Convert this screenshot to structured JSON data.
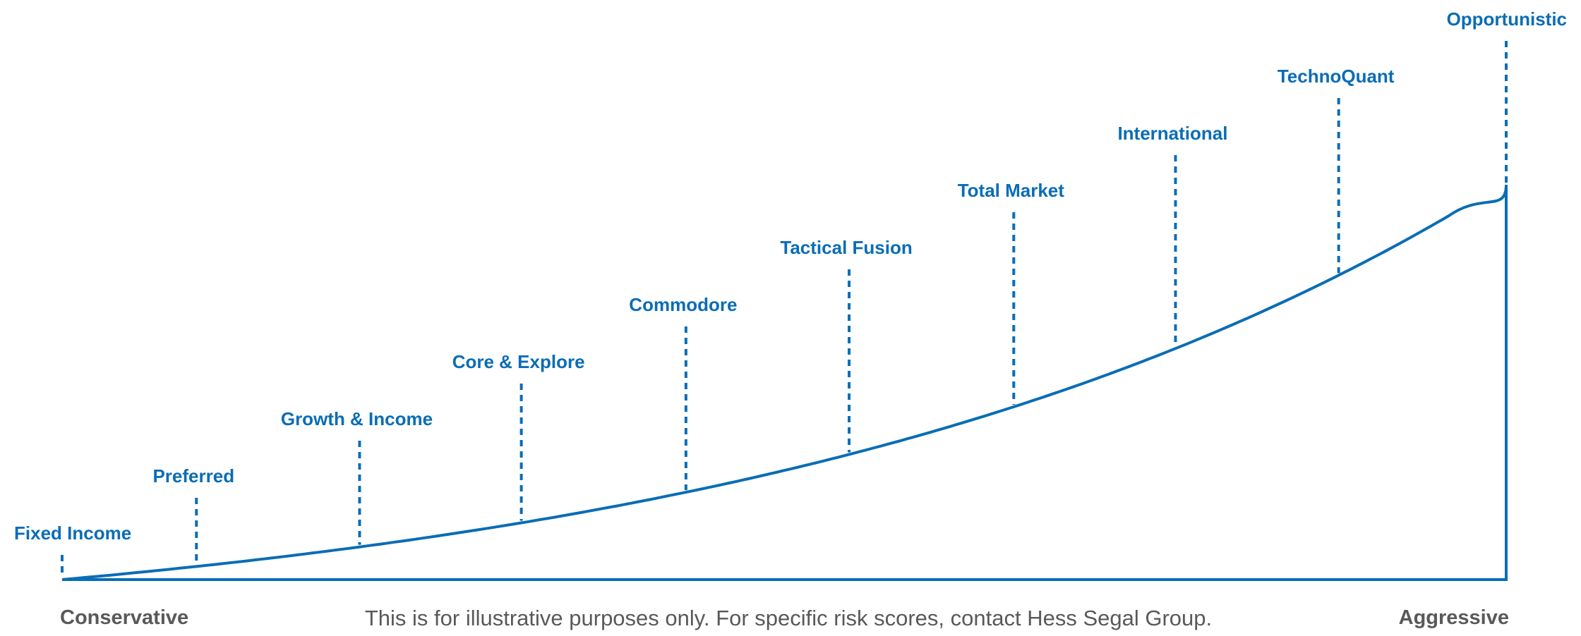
{
  "colors": {
    "accent": "#0a6db5",
    "end_label": "#595959",
    "footnote": "#595959",
    "background": "#ffffff"
  },
  "strategies": [
    {
      "label": "Fixed Income",
      "risk": 0.0
    },
    {
      "label": "Preferred",
      "risk": 0.093
    },
    {
      "label": "Growth & Income",
      "risk": 0.206
    },
    {
      "label": "Core & Explore",
      "risk": 0.318
    },
    {
      "label": "Commodore",
      "risk": 0.432
    },
    {
      "label": "Tactical Fusion",
      "risk": 0.545
    },
    {
      "label": "Total Market",
      "risk": 0.659
    },
    {
      "label": "International",
      "risk": 0.771
    },
    {
      "label": "TechnoQuant",
      "risk": 0.884
    },
    {
      "label": "Opportunistic",
      "risk": 1.0
    }
  ],
  "scale": {
    "low_label": "Conservative",
    "high_label": "Aggressive"
  },
  "footnote": "This is for illustrative purposes only. For specific risk scores, contact Hess Segal Group."
}
